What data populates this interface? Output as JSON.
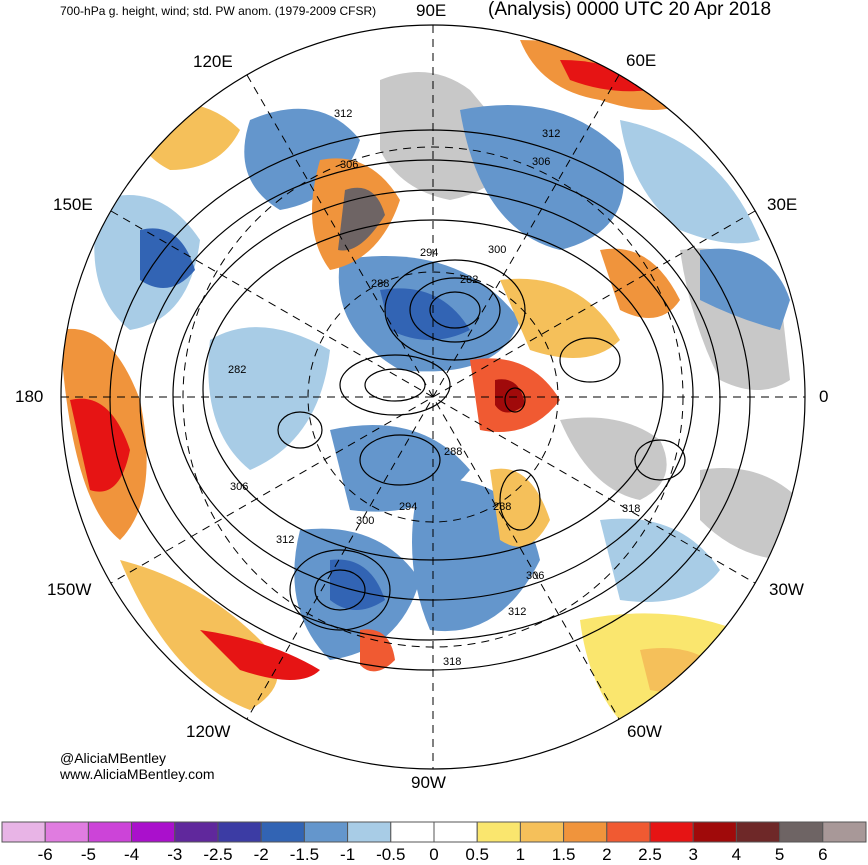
{
  "header": {
    "left_title": "700-hPa g. height, wind; std. PW anom. (1979-2009 CFSR)",
    "right_title": "(Analysis) 0000 UTC 20 Apr 2018"
  },
  "credits": {
    "twitter": "@AliciaMBentley",
    "website": "www.AliciaMBentley.com"
  },
  "longitude_labels": {
    "lon_90e": "90E",
    "lon_60e": "60E",
    "lon_120e": "120E",
    "lon_150e": "150E",
    "lon_30e": "30E",
    "lon_180": "180",
    "lon_0": "0",
    "lon_150w": "150W",
    "lon_30w": "30W",
    "lon_120w": "120W",
    "lon_60w": "60W",
    "lon_90w": "90W"
  },
  "contour_labels": {
    "c312_a": "312",
    "c312_b": "312",
    "c306_a": "306",
    "c306_b": "306",
    "c294_a": "294",
    "c300_a": "300",
    "c282_a": "282",
    "c288_a": "288",
    "c282_b": "282",
    "c288_b": "288",
    "c306_c": "306",
    "c300_b": "300",
    "c294_b": "294",
    "c312_c": "312",
    "c288_c": "288",
    "c318_a": "318",
    "c306_d": "306",
    "c312_d": "312",
    "c318_b": "318"
  },
  "colorbar": {
    "ticks": [
      "-6",
      "-5",
      "-4",
      "-3",
      "-2.5",
      "-2",
      "-1.5",
      "-1",
      "-0.5",
      "0",
      "0.5",
      "1",
      "1.5",
      "2",
      "2.5",
      "3",
      "4",
      "5",
      "6"
    ],
    "colors": [
      "#e8b4e6",
      "#e07ce0",
      "#cc44d8",
      "#aa10cc",
      "#60289c",
      "#3c3ca4",
      "#3264b4",
      "#6496cc",
      "#a8cce6",
      "#ffffff",
      "#ffffff",
      "#fae66e",
      "#f5c05a",
      "#f0943c",
      "#f05a32",
      "#e61414",
      "#a00a0a",
      "#6e2828",
      "#6e6464",
      "#a89898"
    ]
  }
}
